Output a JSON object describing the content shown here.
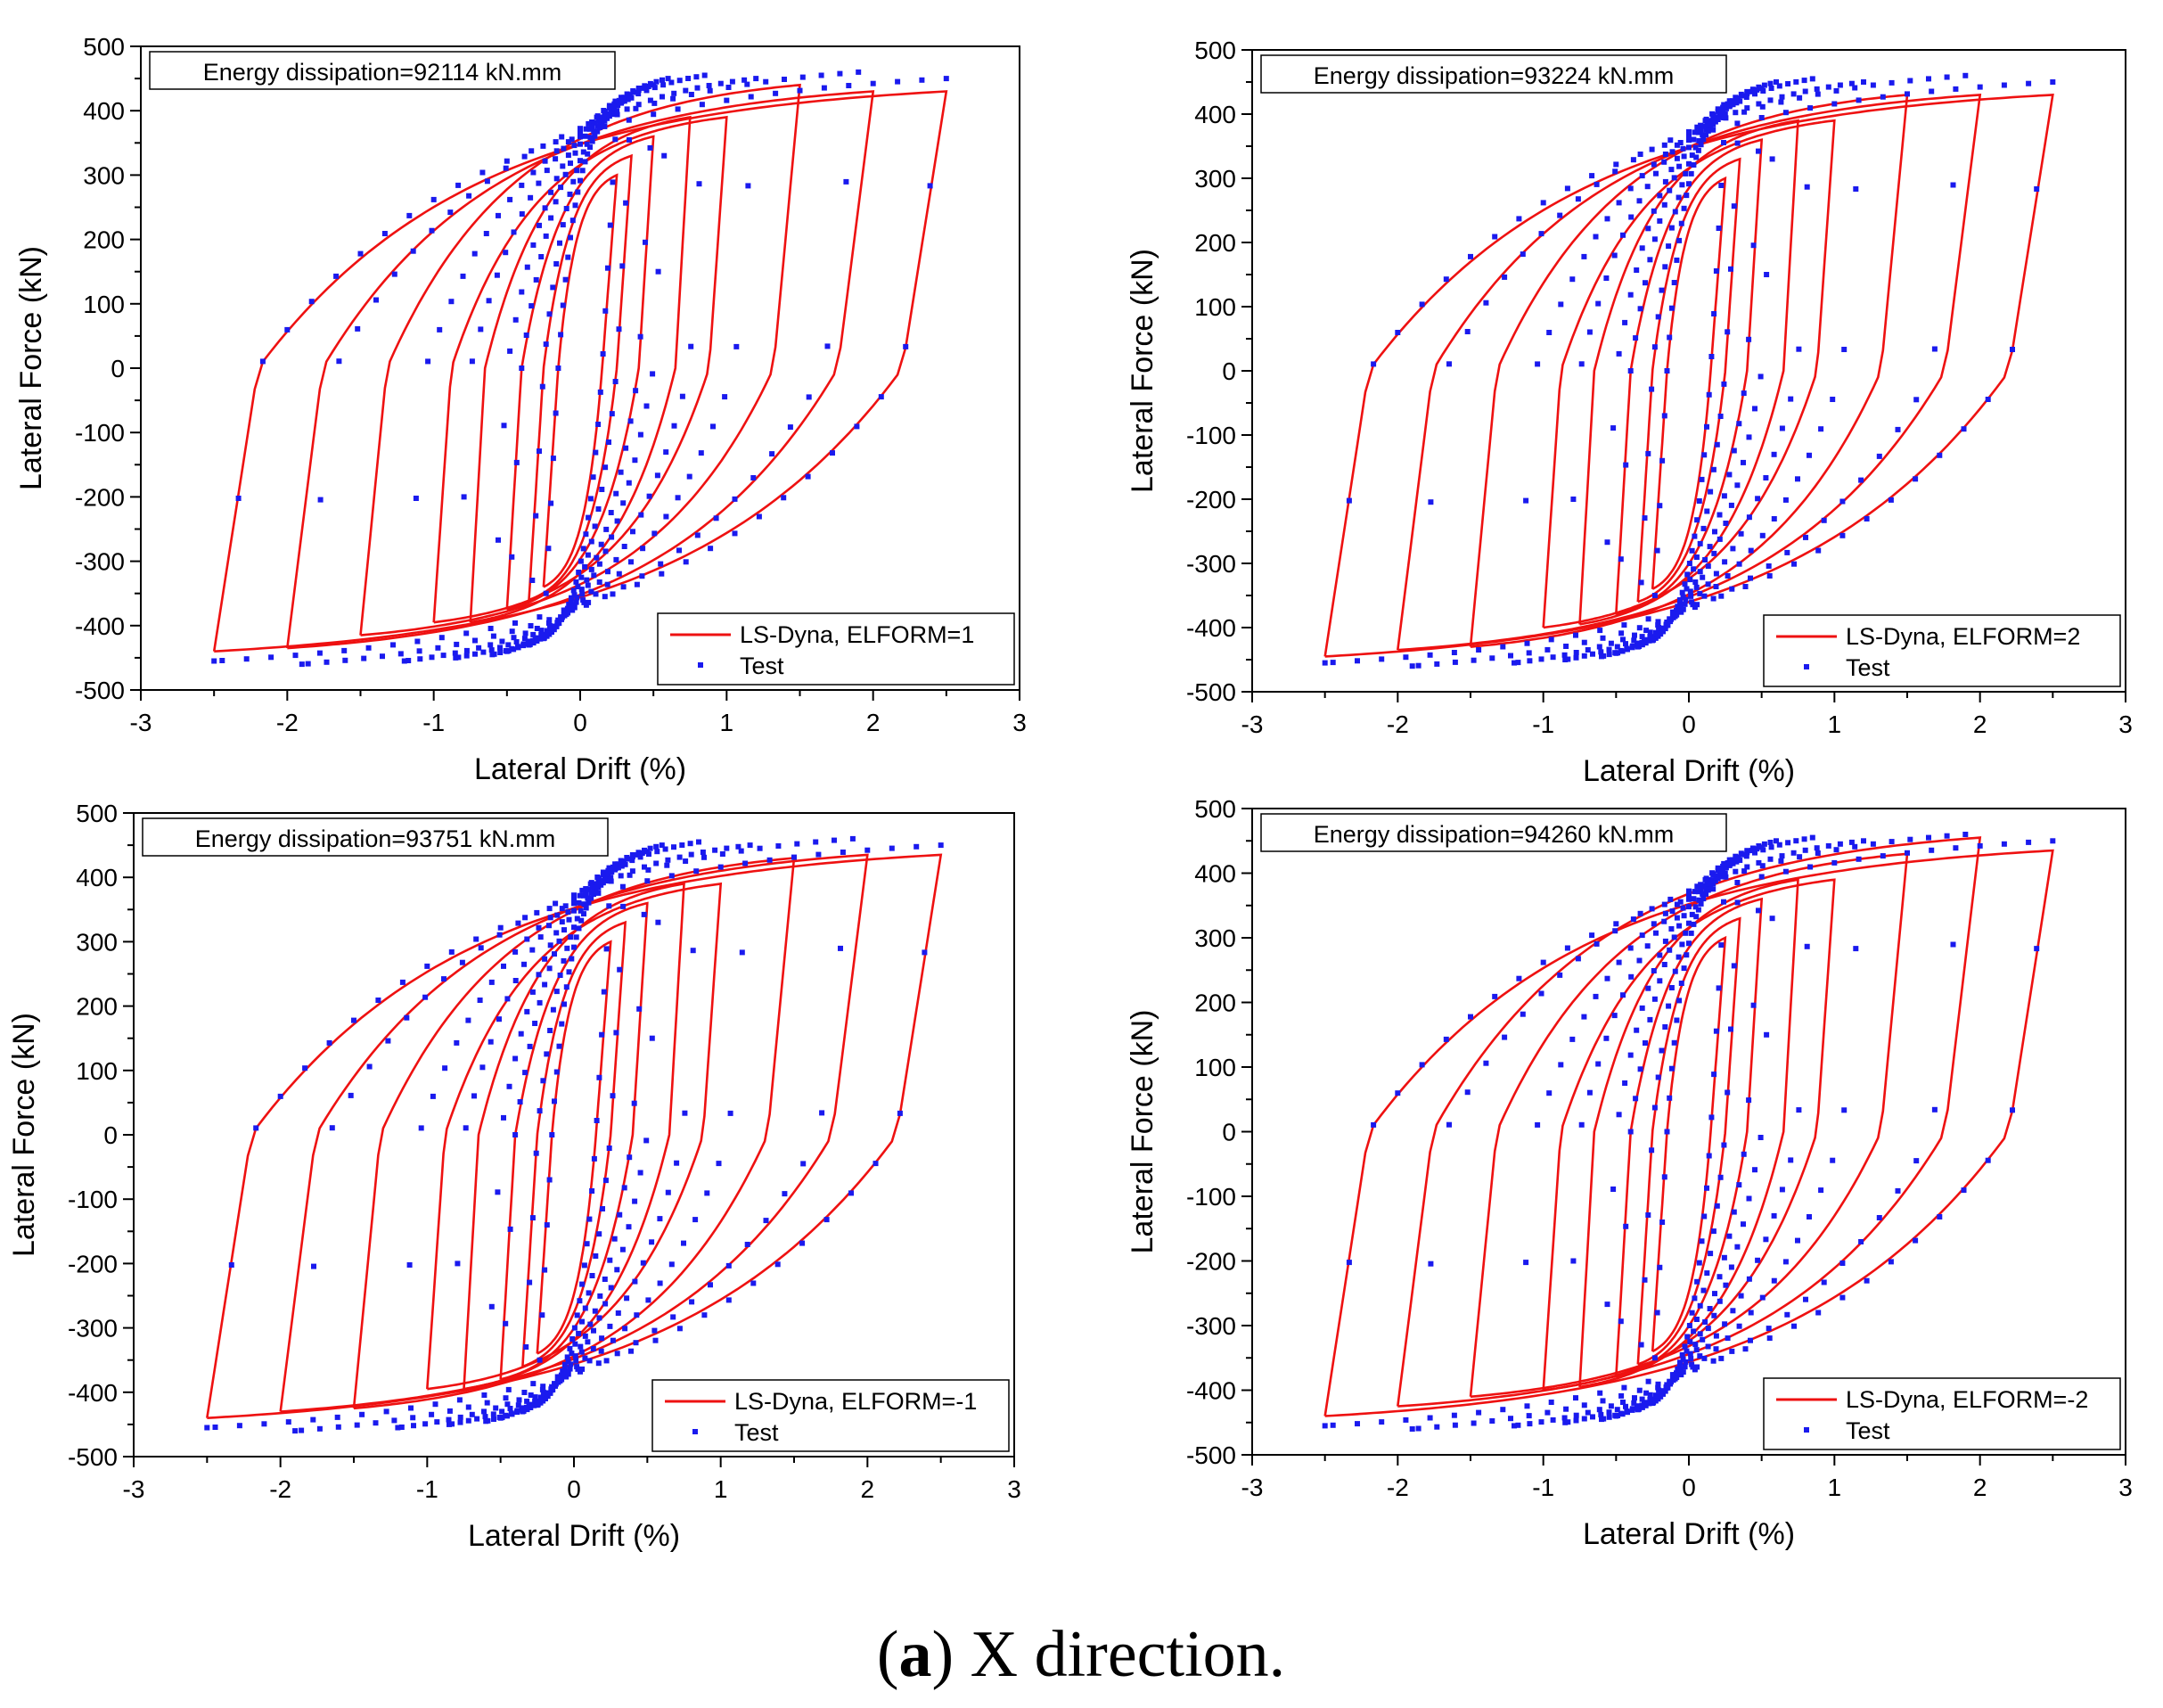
{
  "figure": {
    "caption_letter": "a",
    "caption_text": ") X direction.",
    "caption_open": "("
  },
  "colors": {
    "sim": "#ee1111",
    "test": "#1a1aee",
    "axis": "#000000"
  },
  "chart_data": [
    {
      "type": "line",
      "xlabel": "Lateral Drift (%)",
      "ylabel": "Lateral Force (kN)",
      "xlim": [
        -3,
        3
      ],
      "ylim": [
        -500,
        500
      ],
      "xticks": [
        "-3",
        "-2",
        "-1",
        "0",
        "1",
        "2",
        "3"
      ],
      "yticks": [
        "-500",
        "-400",
        "-300",
        "-200",
        "-100",
        "0",
        "100",
        "200",
        "300",
        "400",
        "500"
      ],
      "annotation": "Energy dissipation=92114 kN.mm",
      "legend_position": "bottom-right",
      "series": [
        {
          "name": "LS-Dyna, ELFORM=1",
          "style": "line",
          "amplitudes": [
            0.25,
            0.35,
            0.5,
            0.75,
            1.0,
            1.5,
            2.0,
            2.5
          ],
          "peak_pos": [
            300,
            330,
            360,
            390,
            390,
            440,
            430,
            430
          ],
          "peak_neg": [
            -340,
            -360,
            -375,
            -395,
            -395,
            -415,
            -435,
            -440
          ]
        },
        {
          "name": "Test",
          "style": "dots",
          "amplitudes": [
            0.25,
            0.35,
            0.5,
            0.6,
            0.85,
            1.2,
            1.9,
            2.5
          ],
          "peak_pos": [
            400,
            420,
            440,
            450,
            455,
            450,
            460,
            450
          ],
          "peak_neg": [
            -420,
            -430,
            -440,
            -445,
            -450,
            -455,
            -460,
            -455
          ]
        }
      ]
    },
    {
      "type": "line",
      "xlabel": "Lateral Drift (%)",
      "ylabel": "Lateral Force (kN)",
      "xlim": [
        -3,
        3
      ],
      "ylim": [
        -500,
        500
      ],
      "xticks": [
        "-3",
        "-2",
        "-1",
        "0",
        "1",
        "2",
        "3"
      ],
      "yticks": [
        "-500",
        "-400",
        "-300",
        "-200",
        "-100",
        "0",
        "100",
        "200",
        "300",
        "400",
        "500"
      ],
      "annotation": "Energy dissipation=93224 kN.mm",
      "legend_position": "bottom-right",
      "series": [
        {
          "name": "LS-Dyna, ELFORM=2",
          "style": "line",
          "amplitudes": [
            0.25,
            0.35,
            0.5,
            0.75,
            1.0,
            1.5,
            2.0,
            2.5
          ],
          "peak_pos": [
            300,
            330,
            360,
            390,
            390,
            430,
            430,
            430
          ],
          "peak_neg": [
            -340,
            -360,
            -380,
            -395,
            -400,
            -430,
            -435,
            -445
          ]
        },
        {
          "name": "Test",
          "style": "dots",
          "amplitudes": [
            0.25,
            0.35,
            0.5,
            0.6,
            0.85,
            1.2,
            1.9,
            2.5
          ],
          "peak_pos": [
            400,
            420,
            440,
            450,
            455,
            450,
            460,
            450
          ],
          "peak_neg": [
            -420,
            -430,
            -440,
            -445,
            -450,
            -455,
            -460,
            -455
          ]
        }
      ]
    },
    {
      "type": "line",
      "xlabel": "Lateral Drift (%)",
      "ylabel": "Lateral Force (kN)",
      "xlim": [
        -3,
        3
      ],
      "ylim": [
        -500,
        500
      ],
      "xticks": [
        "-3",
        "-2",
        "-1",
        "0",
        "1",
        "2",
        "3"
      ],
      "yticks": [
        "-500",
        "-400",
        "-300",
        "-200",
        "-100",
        "0",
        "100",
        "200",
        "300",
        "400",
        "500"
      ],
      "annotation": "Energy dissipation=93751 kN.mm",
      "legend_position": "bottom-right",
      "series": [
        {
          "name": "LS-Dyna, ELFORM=-1",
          "style": "line",
          "amplitudes": [
            0.25,
            0.35,
            0.5,
            0.75,
            1.0,
            1.5,
            2.0,
            2.5
          ],
          "peak_pos": [
            300,
            330,
            360,
            390,
            390,
            430,
            435,
            435
          ],
          "peak_neg": [
            -340,
            -360,
            -380,
            -395,
            -395,
            -425,
            -430,
            -440
          ]
        },
        {
          "name": "Test",
          "style": "dots",
          "amplitudes": [
            0.25,
            0.35,
            0.5,
            0.6,
            0.85,
            1.2,
            1.9,
            2.5
          ],
          "peak_pos": [
            400,
            420,
            440,
            450,
            455,
            450,
            460,
            450
          ],
          "peak_neg": [
            -420,
            -430,
            -440,
            -445,
            -450,
            -455,
            -460,
            -455
          ]
        }
      ]
    },
    {
      "type": "line",
      "xlabel": "Lateral Drift (%)",
      "ylabel": "Lateral Force (kN)",
      "xlim": [
        -3,
        3
      ],
      "ylim": [
        -500,
        500
      ],
      "xticks": [
        "-3",
        "-2",
        "-1",
        "0",
        "1",
        "2",
        "3"
      ],
      "yticks": [
        "-500",
        "-400",
        "-300",
        "-200",
        "-100",
        "0",
        "100",
        "200",
        "300",
        "400",
        "500"
      ],
      "annotation": "Energy dissipation=94260 kN.mm",
      "legend_position": "bottom-right",
      "series": [
        {
          "name": "LS-Dyna, ELFORM=-2",
          "style": "line",
          "amplitudes": [
            0.25,
            0.35,
            0.5,
            0.75,
            1.0,
            1.5,
            2.0,
            2.5
          ],
          "peak_pos": [
            300,
            330,
            360,
            390,
            390,
            430,
            455,
            435
          ],
          "peak_neg": [
            -340,
            -360,
            -380,
            -395,
            -400,
            -410,
            -425,
            -440
          ]
        },
        {
          "name": "Test",
          "style": "dots",
          "amplitudes": [
            0.25,
            0.35,
            0.5,
            0.6,
            0.85,
            1.2,
            1.9,
            2.5
          ],
          "peak_pos": [
            400,
            420,
            440,
            450,
            455,
            450,
            460,
            450
          ],
          "peak_neg": [
            -420,
            -430,
            -440,
            -445,
            -450,
            -455,
            -460,
            -455
          ]
        }
      ]
    }
  ]
}
